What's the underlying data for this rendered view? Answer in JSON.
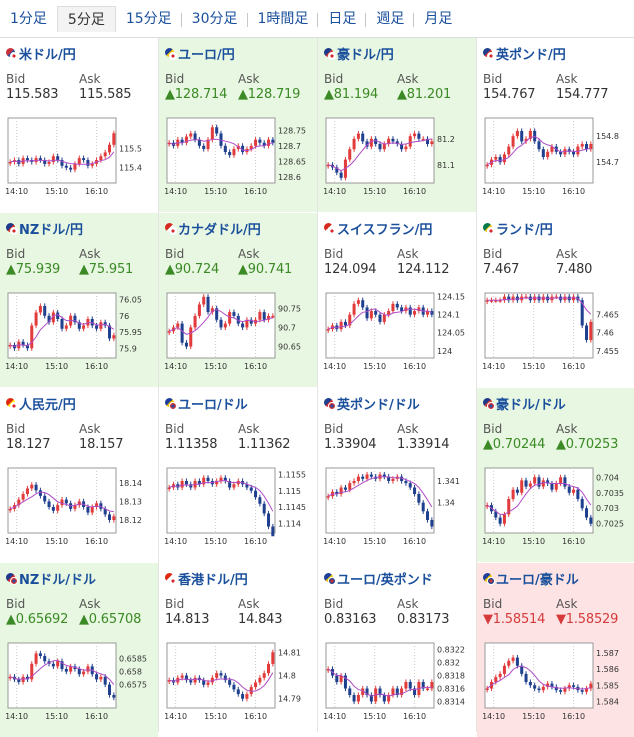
{
  "tabs": [
    {
      "label": "1分足",
      "active": false
    },
    {
      "label": "5分足",
      "active": true
    },
    {
      "label": "15分足",
      "active": false
    },
    {
      "label": "30分足",
      "active": false
    },
    {
      "label": "1時間足",
      "active": false
    },
    {
      "label": "日足",
      "active": false
    },
    {
      "label": "週足",
      "active": false
    },
    {
      "label": "月足",
      "active": false
    }
  ],
  "bid_label": "Bid",
  "ask_label": "Ask",
  "x_ticks": [
    "14:10",
    "15:10",
    "16:10"
  ],
  "colors": {
    "up_bg": "#e8f7e1",
    "down_bg": "#fde3e3",
    "candle_up": "#e23b3b",
    "candle_down": "#1f3f8f",
    "ma": "#b04bc8",
    "up_text": "#3b8a26",
    "down_text": "#d63b3b"
  },
  "pairs": [
    {
      "name": "米ドル/円",
      "flags": [
        "us-flag",
        "jp-flag"
      ],
      "bid": "115.583",
      "ask": "115.585",
      "trend": "none",
      "y_ticks": [
        "115.5",
        "115.4"
      ],
      "chart_data": {
        "type": "candlestick",
        "ylim": [
          115.32,
          115.66
        ],
        "closes": [
          115.43,
          115.44,
          115.42,
          115.45,
          115.44,
          115.43,
          115.45,
          115.44,
          115.42,
          115.43,
          115.46,
          115.44,
          115.41,
          115.4,
          115.39,
          115.42,
          115.45,
          115.44,
          115.41,
          115.42,
          115.44,
          115.46,
          115.48,
          115.52,
          115.58
        ]
      }
    },
    {
      "name": "ユーロ/円",
      "flags": [
        "eu-flag",
        "jp-flag"
      ],
      "bid": "▲128.714",
      "ask": "▲128.719",
      "trend": "up",
      "y_ticks": [
        "128.75",
        "128.7",
        "128.65",
        "128.6"
      ],
      "chart_data": {
        "type": "candlestick",
        "ylim": [
          128.58,
          128.79
        ],
        "closes": [
          128.71,
          128.7,
          128.72,
          128.71,
          128.73,
          128.74,
          128.72,
          128.7,
          128.69,
          128.72,
          128.76,
          128.74,
          128.7,
          128.68,
          128.67,
          128.69,
          128.7,
          128.68,
          128.69,
          128.7,
          128.72,
          128.71,
          128.7,
          128.72,
          128.71
        ]
      }
    },
    {
      "name": "豪ドル/円",
      "flags": [
        "au-flag",
        "jp-flag"
      ],
      "bid": "▲81.194",
      "ask": "▲81.201",
      "trend": "up",
      "y_ticks": [
        "81.2",
        "81.1"
      ],
      "chart_data": {
        "type": "candlestick",
        "ylim": [
          81.03,
          81.28
        ],
        "closes": [
          81.1,
          81.09,
          81.07,
          81.05,
          81.12,
          81.16,
          81.2,
          81.22,
          81.19,
          81.17,
          81.2,
          81.18,
          81.16,
          81.18,
          81.2,
          81.19,
          81.18,
          81.16,
          81.17,
          81.21,
          81.22,
          81.2,
          81.2,
          81.18,
          81.19
        ]
      }
    },
    {
      "name": "英ポンド/円",
      "flags": [
        "gb-flag",
        "jp-flag"
      ],
      "bid": "154.767",
      "ask": "154.777",
      "trend": "none",
      "y_ticks": [
        "154.8",
        "154.7"
      ],
      "chart_data": {
        "type": "candlestick",
        "ylim": [
          154.62,
          154.87
        ],
        "closes": [
          154.69,
          154.71,
          154.72,
          154.7,
          154.73,
          154.76,
          154.8,
          154.82,
          154.78,
          154.79,
          154.82,
          154.78,
          154.75,
          154.72,
          154.74,
          154.76,
          154.74,
          154.73,
          154.75,
          154.74,
          154.73,
          154.76,
          154.77,
          154.75,
          154.77
        ]
      }
    },
    {
      "name": "NZドル/円",
      "flags": [
        "nz-flag",
        "jp-flag"
      ],
      "bid": "▲75.939",
      "ask": "▲75.951",
      "trend": "up",
      "y_ticks": [
        "76.05",
        "76",
        "75.95",
        "75.9"
      ],
      "chart_data": {
        "type": "candlestick",
        "ylim": [
          75.87,
          76.07
        ],
        "closes": [
          75.91,
          75.9,
          75.92,
          75.91,
          75.9,
          75.97,
          76.01,
          76.03,
          76.0,
          75.98,
          76.01,
          75.99,
          75.96,
          75.97,
          76.0,
          75.98,
          75.96,
          75.97,
          75.99,
          75.97,
          75.96,
          75.98,
          75.97,
          75.93,
          75.94
        ]
      }
    },
    {
      "name": "カナダドル/円",
      "flags": [
        "ca-flag",
        "jp-flag"
      ],
      "bid": "▲90.724",
      "ask": "▲90.741",
      "trend": "up",
      "y_ticks": [
        "90.75",
        "90.7",
        "90.65"
      ],
      "chart_data": {
        "type": "candlestick",
        "ylim": [
          90.62,
          90.79
        ],
        "closes": [
          90.69,
          90.7,
          90.71,
          90.66,
          90.65,
          90.7,
          90.73,
          90.76,
          90.78,
          90.74,
          90.75,
          90.72,
          90.7,
          90.71,
          90.74,
          90.73,
          90.71,
          90.7,
          90.72,
          90.71,
          90.72,
          90.74,
          90.72,
          90.73,
          90.73
        ]
      }
    },
    {
      "name": "スイスフラン/円",
      "flags": [
        "ch-flag",
        "jp-flag"
      ],
      "bid": "124.094",
      "ask": "124.112",
      "trend": "none",
      "y_ticks": [
        "124.15",
        "124.1",
        "124.05",
        "124"
      ],
      "chart_data": {
        "type": "candlestick",
        "ylim": [
          123.98,
          124.16
        ],
        "closes": [
          124.06,
          124.07,
          124.06,
          124.08,
          124.07,
          124.1,
          124.13,
          124.14,
          124.12,
          124.09,
          124.11,
          124.1,
          124.08,
          124.1,
          124.11,
          124.13,
          124.12,
          124.11,
          124.12,
          124.1,
          124.11,
          124.12,
          124.1,
          124.11,
          124.1
        ]
      }
    },
    {
      "name": "ランド/円",
      "flags": [
        "za-flag",
        "jp-flag"
      ],
      "bid": "7.467",
      "ask": "7.480",
      "trend": "none",
      "y_ticks": [
        "7.465",
        "7.46",
        "7.455"
      ],
      "chart_data": {
        "type": "candlestick",
        "ylim": [
          7.453,
          7.471
        ],
        "closes": [
          7.469,
          7.469,
          7.469,
          7.469,
          7.47,
          7.469,
          7.47,
          7.469,
          7.47,
          7.47,
          7.469,
          7.47,
          7.469,
          7.47,
          7.469,
          7.47,
          7.47,
          7.469,
          7.47,
          7.469,
          7.47,
          7.469,
          7.462,
          7.458,
          7.463
        ]
      }
    },
    {
      "name": "人民元/円",
      "flags": [
        "cn-flag",
        "jp-flag"
      ],
      "bid": "18.127",
      "ask": "18.157",
      "trend": "none",
      "y_ticks": [
        "18.14",
        "18.13",
        "18.12"
      ],
      "chart_data": {
        "type": "candlestick",
        "ylim": [
          18.113,
          18.148
        ],
        "closes": [
          18.126,
          18.128,
          18.131,
          18.134,
          18.137,
          18.139,
          18.136,
          18.133,
          18.13,
          18.127,
          18.125,
          18.128,
          18.131,
          18.129,
          18.126,
          18.128,
          18.13,
          18.127,
          18.124,
          18.127,
          18.129,
          18.126,
          18.123,
          18.12,
          18.122
        ]
      }
    },
    {
      "name": "ユーロ/ドル",
      "flags": [
        "eu-flag",
        "us-flag"
      ],
      "bid": "1.11358",
      "ask": "1.11362",
      "trend": "none",
      "y_ticks": [
        "1.1155",
        "1.115",
        "1.1145",
        "1.114"
      ],
      "chart_data": {
        "type": "candlestick",
        "ylim": [
          1.1137,
          1.1157
        ],
        "closes": [
          1.1151,
          1.1152,
          1.1151,
          1.1153,
          1.1152,
          1.1151,
          1.1153,
          1.1152,
          1.1154,
          1.1153,
          1.1152,
          1.1153,
          1.1154,
          1.1153,
          1.1151,
          1.1152,
          1.1153,
          1.1152,
          1.1151,
          1.115,
          1.1148,
          1.1146,
          1.1143,
          1.1139,
          1.1136
        ]
      }
    },
    {
      "name": "英ポンド/ドル",
      "flags": [
        "gb-flag",
        "us-flag"
      ],
      "bid": "1.33904",
      "ask": "1.33914",
      "trend": "none",
      "y_ticks": [
        "1.341",
        "1.34"
      ],
      "chart_data": {
        "type": "candlestick",
        "ylim": [
          1.3386,
          1.3416
        ],
        "closes": [
          1.3403,
          1.3405,
          1.3404,
          1.3407,
          1.3406,
          1.3409,
          1.341,
          1.3412,
          1.3411,
          1.3413,
          1.3412,
          1.3411,
          1.3413,
          1.3412,
          1.341,
          1.3411,
          1.3412,
          1.341,
          1.3409,
          1.3407,
          1.3404,
          1.34,
          1.3396,
          1.3392,
          1.3389
        ]
      }
    },
    {
      "name": "豪ドル/ドル",
      "flags": [
        "au-flag",
        "us-flag"
      ],
      "bid": "▲0.70244",
      "ask": "▲0.70253",
      "trend": "up",
      "y_ticks": [
        "0.704",
        "0.7035",
        "0.703",
        "0.7025"
      ],
      "chart_data": {
        "type": "candlestick",
        "ylim": [
          0.7022,
          0.7043
        ],
        "closes": [
          0.7031,
          0.7029,
          0.7027,
          0.7025,
          0.7028,
          0.7033,
          0.7036,
          0.7035,
          0.7039,
          0.7037,
          0.7038,
          0.704,
          0.7037,
          0.7039,
          0.7038,
          0.7036,
          0.7038,
          0.704,
          0.7037,
          0.7035,
          0.7036,
          0.7033,
          0.703,
          0.7027,
          0.7025
        ]
      }
    },
    {
      "name": "NZドル/ドル",
      "flags": [
        "nz-flag",
        "us-flag"
      ],
      "bid": "▲0.65692",
      "ask": "▲0.65708",
      "trend": "up",
      "y_ticks": [
        "0.6585",
        "0.658",
        "0.6575"
      ],
      "chart_data": {
        "type": "candlestick",
        "ylim": [
          0.6566,
          0.6591
        ],
        "closes": [
          0.6578,
          0.6577,
          0.6576,
          0.6578,
          0.6577,
          0.6583,
          0.6587,
          0.6586,
          0.6584,
          0.6583,
          0.6582,
          0.6584,
          0.6581,
          0.658,
          0.6582,
          0.6581,
          0.6579,
          0.658,
          0.6582,
          0.6579,
          0.6577,
          0.6578,
          0.6575,
          0.6571,
          0.657
        ]
      }
    },
    {
      "name": "香港ドル/円",
      "flags": [
        "hk-flag",
        "jp-flag"
      ],
      "bid": "14.813",
      "ask": "14.843",
      "trend": "none",
      "y_ticks": [
        "14.81",
        "14.8",
        "14.79"
      ],
      "chart_data": {
        "type": "candlestick",
        "ylim": [
          14.786,
          14.814
        ],
        "closes": [
          14.798,
          14.797,
          14.799,
          14.8,
          14.798,
          14.797,
          14.799,
          14.798,
          14.796,
          14.797,
          14.799,
          14.801,
          14.8,
          14.798,
          14.796,
          14.794,
          14.792,
          14.79,
          14.792,
          14.795,
          14.797,
          14.799,
          14.801,
          14.805,
          14.81
        ]
      }
    },
    {
      "name": "ユーロ/英ポンド",
      "flags": [
        "eu-flag",
        "gb-flag"
      ],
      "bid": "0.83163",
      "ask": "0.83173",
      "trend": "none",
      "y_ticks": [
        "0.8322",
        "0.832",
        "0.8318",
        "0.8316",
        "0.8314"
      ],
      "chart_data": {
        "type": "candlestick",
        "ylim": [
          0.8313,
          0.8323
        ],
        "closes": [
          0.8319,
          0.8318,
          0.8317,
          0.8318,
          0.8316,
          0.8315,
          0.8314,
          0.8315,
          0.8316,
          0.8315,
          0.8314,
          0.8316,
          0.8315,
          0.8314,
          0.8315,
          0.8316,
          0.8315,
          0.8316,
          0.8317,
          0.8316,
          0.8315,
          0.8317,
          0.8316,
          0.8316,
          0.8317
        ]
      }
    },
    {
      "name": "ユーロ/豪ドル",
      "flags": [
        "eu-flag",
        "au-flag"
      ],
      "bid": "▼1.58514",
      "ask": "▼1.58529",
      "trend": "down",
      "y_ticks": [
        "1.587",
        "1.586",
        "1.585",
        "1.584"
      ],
      "chart_data": {
        "type": "candlestick",
        "ylim": [
          1.5836,
          1.5876
        ],
        "closes": [
          1.5848,
          1.5852,
          1.5855,
          1.5857,
          1.5862,
          1.5865,
          1.5867,
          1.5862,
          1.5857,
          1.5852,
          1.585,
          1.5848,
          1.5847,
          1.5849,
          1.5851,
          1.5849,
          1.5847,
          1.5846,
          1.5848,
          1.585,
          1.5849,
          1.5847,
          1.5846,
          1.5848,
          1.5851
        ]
      }
    }
  ]
}
